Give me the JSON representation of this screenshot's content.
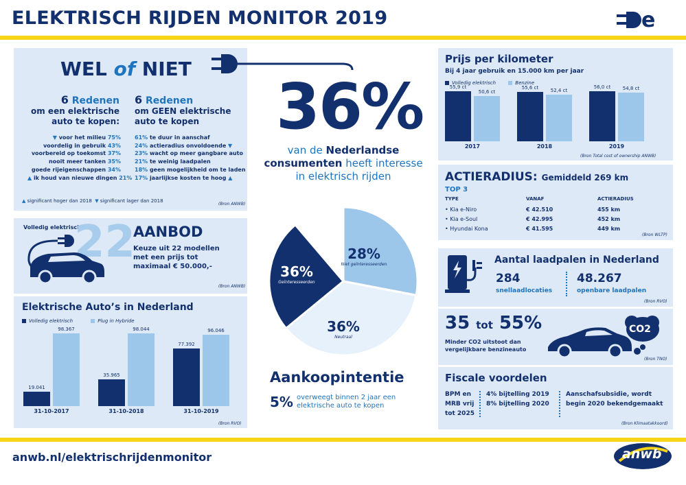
{
  "header": {
    "title": "ELEKTRISCH RIJDEN MONITOR 2019"
  },
  "wel_of_niet": {
    "title_a": "WEL",
    "title_of": "of",
    "title_b": "NIET",
    "left_num": "6",
    "left_head": "Redenen",
    "left_sub1": "om een elektrische",
    "left_sub2": "auto te kopen:",
    "left_items": [
      {
        "text": "voor het milieu",
        "value": "75%",
        "arrow": "down"
      },
      {
        "text": "voordelig in gebruik",
        "value": "43%",
        "arrow": ""
      },
      {
        "text": "voorbereid op toekomst",
        "value": "37%",
        "arrow": ""
      },
      {
        "text": "nooit meer tanken",
        "value": "35%",
        "arrow": ""
      },
      {
        "text": "goede rijeigenschappen",
        "value": "34%",
        "arrow": ""
      },
      {
        "text": "ik houd van nieuwe dingen",
        "value": "21%",
        "arrow": "up"
      }
    ],
    "right_num": "6",
    "right_head": "Redenen",
    "right_sub1": "om GEEN elektrische",
    "right_sub2": "auto te kopen",
    "right_items": [
      {
        "value": "61%",
        "text": "te duur in aanschaf",
        "arrow": ""
      },
      {
        "value": "24%",
        "text": "actieradius onvoldoende",
        "arrow": "down"
      },
      {
        "value": "23%",
        "text": "wacht op meer gangbare auto",
        "arrow": ""
      },
      {
        "value": "21%",
        "text": "te weinig laadpalen",
        "arrow": ""
      },
      {
        "value": "18%",
        "text": "geen mogelijkheid om te laden",
        "arrow": ""
      },
      {
        "value": "17%",
        "text": "jaarlijkse kosten te hoog",
        "arrow": "up"
      }
    ],
    "legend_up": "significant hoger dan 2018",
    "legend_down": "significant lager dan 2018",
    "source": "(Bron ANWB)"
  },
  "aanbod": {
    "label": "Volledig elektrisch",
    "number": "22",
    "title": "AANBOD",
    "text1": "Keuze uit 22 modellen",
    "text2": "met een prijs tot",
    "text3": "maximaal € 50.000,-",
    "source": "(Bron ANWB)"
  },
  "ev_nl": {
    "title": "Elektrische Auto’s in Nederland",
    "legend_full": "Volledig elektrisch",
    "legend_hybrid": "Plug in Hybride",
    "source": "(Bron RVO)",
    "chart_data": {
      "type": "bar",
      "categories": [
        "31-10-2017",
        "31-10-2018",
        "31-10-2019"
      ],
      "series": [
        {
          "name": "Volledig elektrisch",
          "values": [
            19041,
            35965,
            77392
          ],
          "labels": [
            "19.041",
            "35.965",
            "77.392"
          ],
          "color": "#13306e"
        },
        {
          "name": "Plug in Hybride",
          "values": [
            98367,
            98044,
            96046
          ],
          "labels": [
            "98.367",
            "98.044",
            "96.046"
          ],
          "color": "#9cc6ea"
        }
      ],
      "ylim": [
        0,
        100000
      ]
    }
  },
  "center": {
    "big": "36%",
    "line1a": "van de ",
    "line1b": "Nederlandse",
    "line2a": "consumenten",
    "line2b": " heeft interesse",
    "line3": "in elektrisch rijden",
    "chart_data": {
      "type": "pie",
      "slices": [
        {
          "label": "Geïnteresseerden",
          "value": 36,
          "value_label": "36%",
          "color": "#13306e"
        },
        {
          "label": "Niet geïnteresseerden",
          "value": 28,
          "value_label": "28%",
          "color": "#9cc6ea"
        },
        {
          "label": "Neutraal",
          "value": 36,
          "value_label": "36%",
          "color": "#e6f1fb"
        }
      ]
    },
    "aankoop_title": "Aankoopintentie",
    "aankoop_pct": "5%",
    "aankoop_text1": "overweegt binnen 2 jaar een",
    "aankoop_text2": "elektrische auto te kopen"
  },
  "prijs": {
    "title": "Prijs per kilometer",
    "subtitle": "Bij 4 jaar gebruik en 15.000 km per jaar",
    "legend_full": "Volledig elektrisch",
    "legend_benz": "Benzine",
    "source": "(Bron Total cost of ownership ANWB)",
    "chart_data": {
      "type": "bar",
      "categories": [
        "2017",
        "2018",
        "2019"
      ],
      "series": [
        {
          "name": "Volledig elektrisch",
          "values": [
            55.9,
            55.6,
            56.0
          ],
          "labels": [
            "55,9 ct",
            "55,6 ct",
            "56,0 ct"
          ],
          "color": "#13306e"
        },
        {
          "name": "Benzine",
          "values": [
            50.6,
            52.4,
            54.8
          ],
          "labels": [
            "50,6 ct",
            "52,4 ct",
            "54,8 ct"
          ],
          "color": "#9cc6ea"
        }
      ],
      "ylim": [
        0,
        60
      ]
    }
  },
  "actieradius": {
    "title": "ACTIERADIUS:",
    "avg": "Gemiddeld 269 km",
    "top": "TOP 3",
    "headers": [
      "TYPE",
      "VANAF",
      "ACTIERADIUS"
    ],
    "rows": [
      [
        "Kia e-Niro",
        "€ 42.510",
        "455 km"
      ],
      [
        "Kia e-Soul",
        "€ 42.995",
        "452 km"
      ],
      [
        "Hyundai Kona",
        "€ 41.595",
        "449 km"
      ]
    ],
    "source": "(Bron WLTP)"
  },
  "laadpalen": {
    "title": "Aantal laadpalen in Nederland",
    "n1": "284",
    "l1": "snellaadlocaties",
    "n2": "48.267",
    "l2": "openbare laadpalen",
    "source": "(Bron RVO)"
  },
  "co2": {
    "n1": "35",
    "tot": "tot",
    "n2": "55%",
    "text1": "Minder CO2 uitstoot dan",
    "text2": "vergelijkbare benzineauto",
    "cloud": "CO2",
    "source": "(Bron TNO)"
  },
  "fiscaal": {
    "title": "Fiscale voordelen",
    "c1": [
      "BPM en",
      "MRB vrij",
      "tot 2025"
    ],
    "c2": [
      "4% bijtelling 2019",
      "8% bijtelling 2020"
    ],
    "c3": [
      "Aanschafsubsidie, wordt",
      "begin 2020 bekendgemaakt"
    ],
    "source": "(Bron Klimaatakkoord)"
  },
  "footer": {
    "url": "anwb.nl/elektrischrijdenmonitor",
    "logo": "anwb"
  },
  "colors": {
    "navy": "#13306e",
    "blue": "#1f74bf",
    "light": "#9cc6ea",
    "panel": "#dde9f6",
    "yellow": "#f8d416"
  }
}
